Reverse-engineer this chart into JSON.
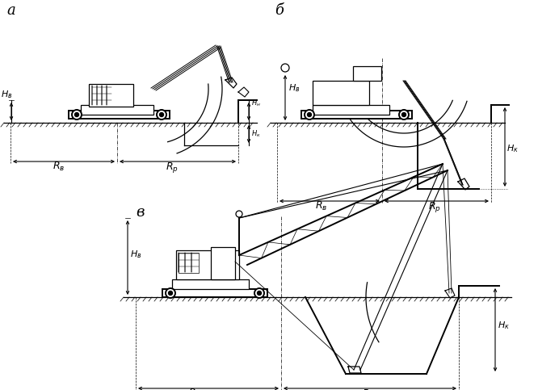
{
  "bg_color": "#ffffff",
  "line_color": "#000000",
  "fig_width": 6.66,
  "fig_height": 4.83,
  "dpi": 100,
  "label_a": "а",
  "label_b": "б",
  "label_v": "в"
}
